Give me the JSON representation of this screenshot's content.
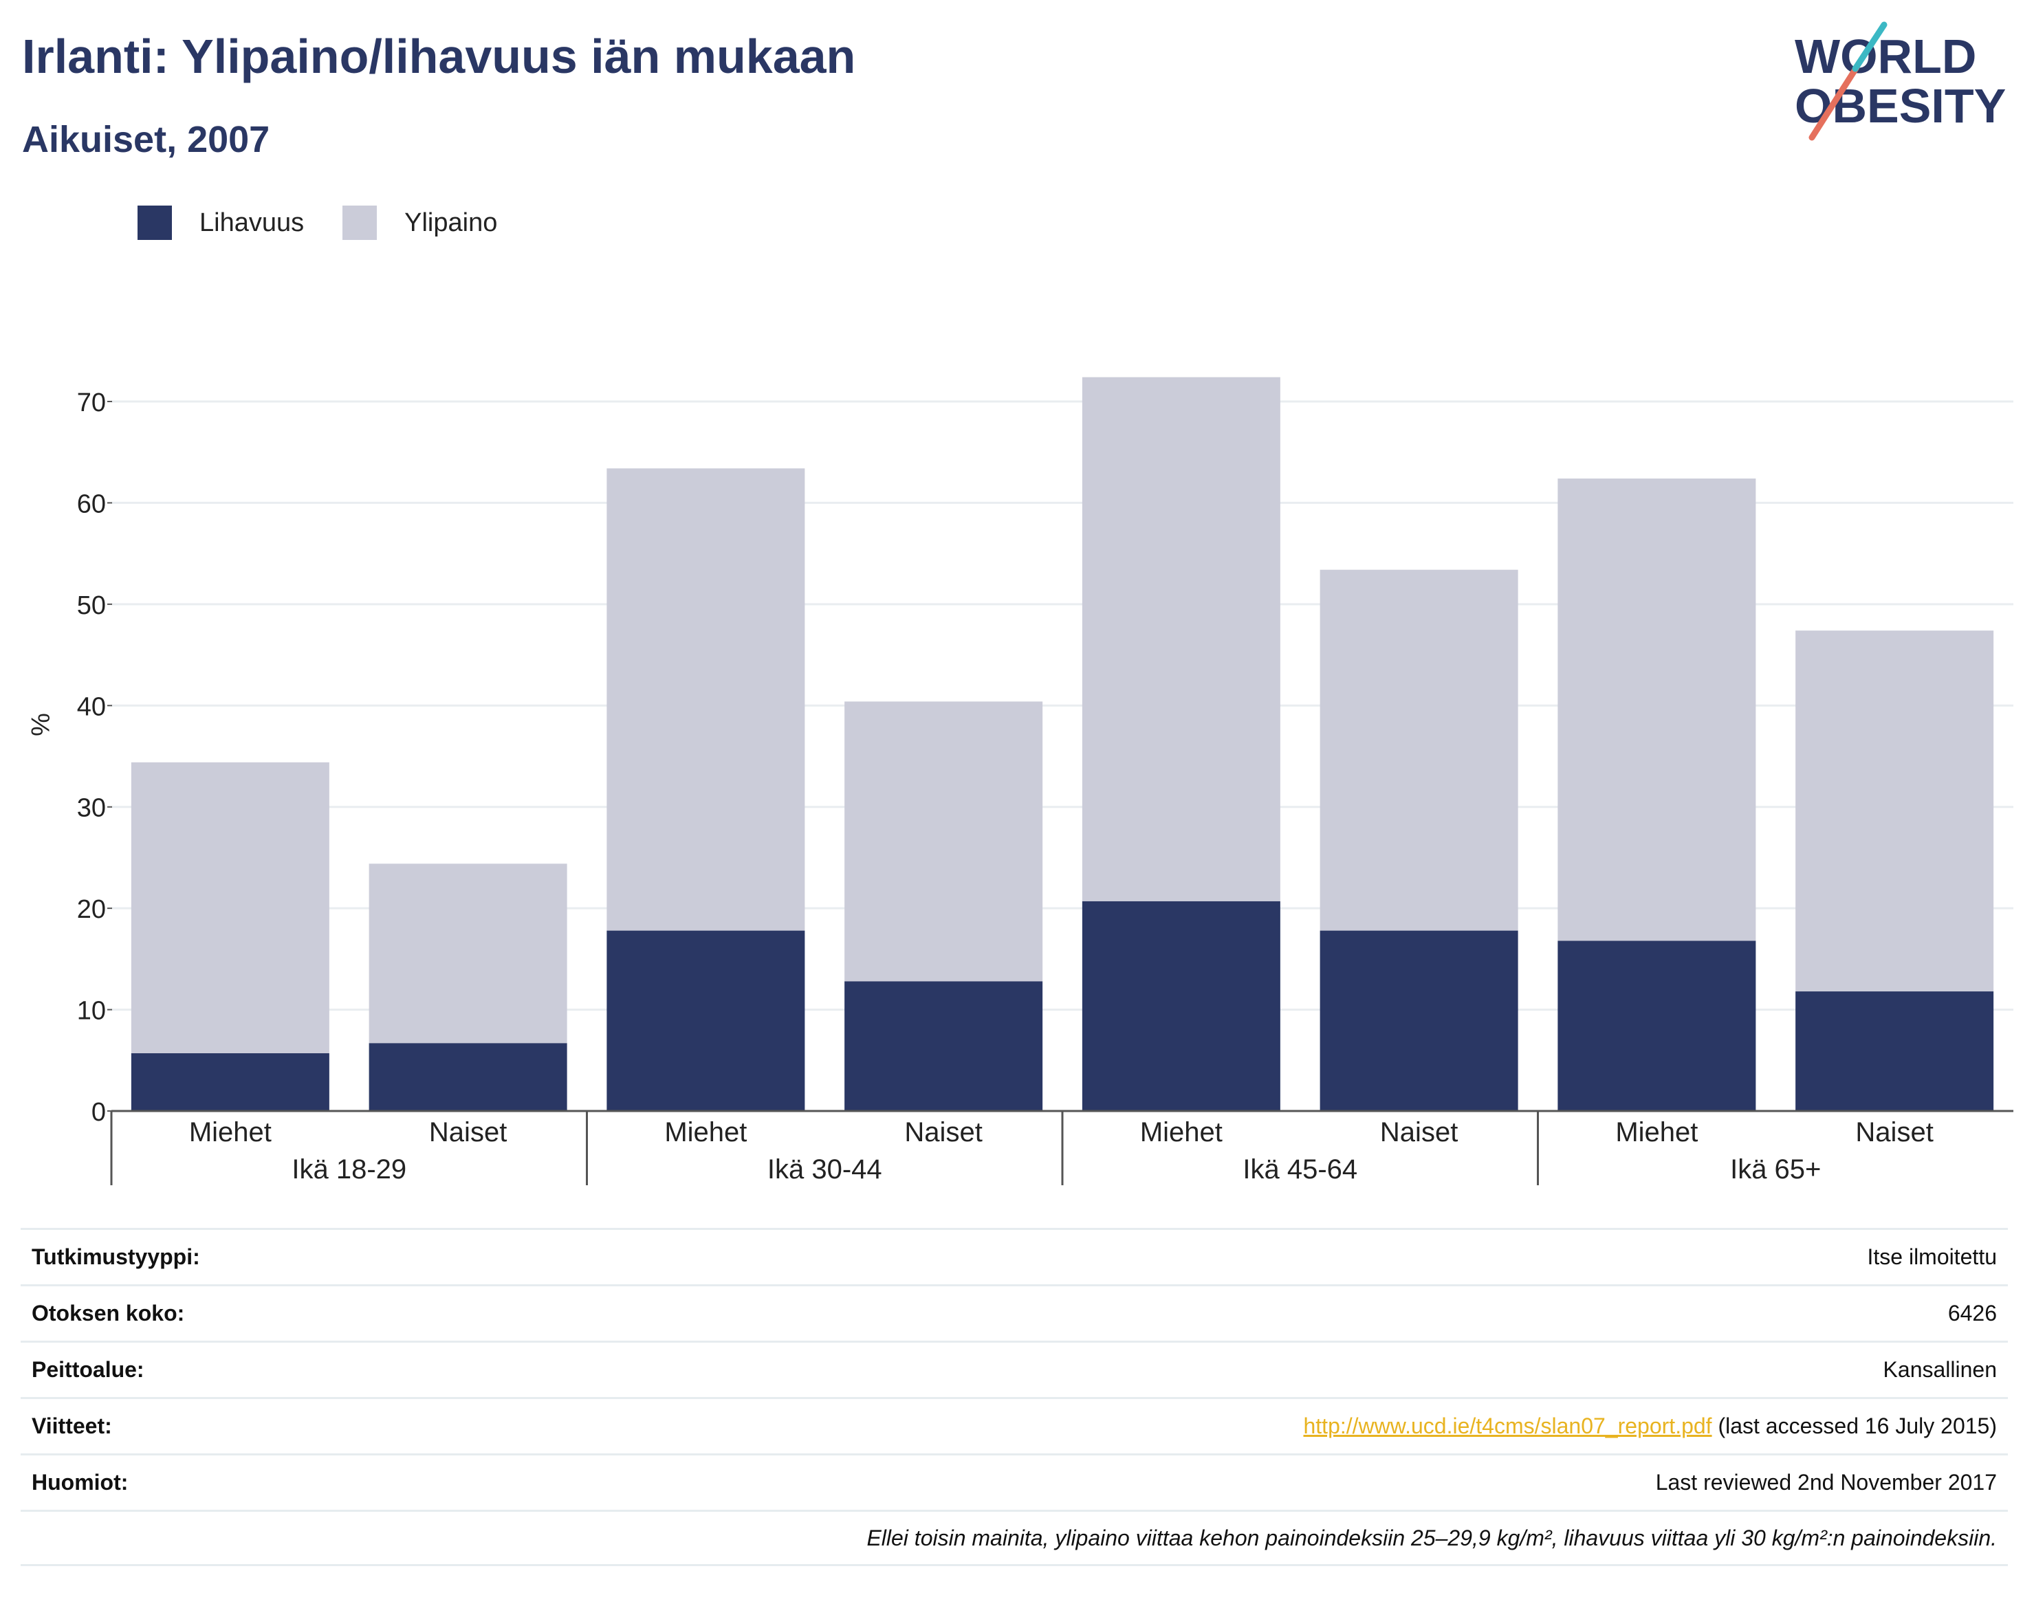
{
  "header": {
    "title": "Irlanti: Ylipaino/lihavuus iän mukaan",
    "subtitle": "Aikuiset, 2007"
  },
  "logo": {
    "line1": "WORLD",
    "line2": "OBESITY"
  },
  "colors": {
    "obesity": "#2a3764",
    "overweight": "#cbccd9",
    "title": "#2a3764",
    "link": "#e8b320"
  },
  "chart_data": {
    "type": "bar",
    "stacked": true,
    "title": "Irlanti: Ylipaino/lihavuus iän mukaan",
    "subtitle": "Aikuiset, 2007",
    "ylabel": "%",
    "xlabel": "",
    "ylim": [
      0,
      70
    ],
    "yticks": [
      0,
      10,
      20,
      30,
      40,
      50,
      60,
      70
    ],
    "grid": true,
    "legend_position": "top-left",
    "groups": [
      "Ikä 18-29",
      "Ikä 30-44",
      "Ikä 45-64",
      "Ikä 65+"
    ],
    "categories": [
      "Miehet",
      "Naiset",
      "Miehet",
      "Naiset",
      "Miehet",
      "Naiset",
      "Miehet",
      "Naiset"
    ],
    "series": [
      {
        "name": "Lihavuus",
        "color": "#2a3764",
        "values": [
          5.7,
          6.7,
          17.8,
          12.8,
          20.7,
          17.8,
          16.8,
          11.8
        ]
      },
      {
        "name": "Ylipaino",
        "color": "#cbccd9",
        "values": [
          28.7,
          17.7,
          45.6,
          27.6,
          51.7,
          35.6,
          45.6,
          35.6
        ]
      }
    ]
  },
  "meta": [
    {
      "key": "Tutkimustyyppi:",
      "value": "Itse ilmoitettu"
    },
    {
      "key": "Otoksen koko:",
      "value": "6426"
    },
    {
      "key": "Peittoalue:",
      "value": "Kansallinen"
    },
    {
      "key": "Viitteet:",
      "link": "http://www.ucd.ie/t4cms/slan07_report.pdf",
      "value": " (last accessed 16 July 2015)"
    },
    {
      "key": "Huomiot:",
      "value": "Last reviewed 2nd November 2017"
    }
  ],
  "footnote": "Ellei toisin mainita, ylipaino viittaa kehon painoindeksiin 25–29,9 kg/m², lihavuus viittaa yli 30 kg/m²:n painoindeksiin."
}
